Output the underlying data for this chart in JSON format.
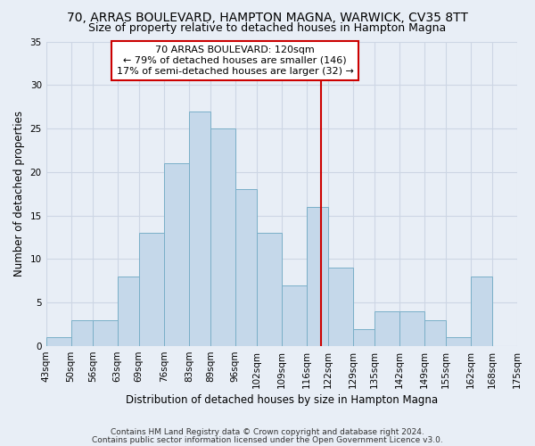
{
  "title": "70, ARRAS BOULEVARD, HAMPTON MAGNA, WARWICK, CV35 8TT",
  "subtitle": "Size of property relative to detached houses in Hampton Magna",
  "xlabel": "Distribution of detached houses by size in Hampton Magna",
  "ylabel": "Number of detached properties",
  "bin_edges": [
    43,
    50,
    56,
    63,
    69,
    76,
    83,
    89,
    96,
    102,
    109,
    116,
    122,
    129,
    135,
    142,
    149,
    155,
    162,
    168,
    175
  ],
  "bar_heights": [
    1,
    3,
    3,
    8,
    13,
    21,
    27,
    25,
    18,
    13,
    7,
    16,
    9,
    2,
    4,
    4,
    3,
    1,
    8,
    0
  ],
  "bar_color": "#c5d8ea",
  "bar_edge_color": "#7aafc8",
  "grid_color": "#cdd6e4",
  "background_color": "#e8eef6",
  "vline_value": 120,
  "vline_color": "#cc0000",
  "annotation_text": "70 ARRAS BOULEVARD: 120sqm\n← 79% of detached houses are smaller (146)\n17% of semi-detached houses are larger (32) →",
  "annotation_box_color": "#ffffff",
  "annotation_box_edge": "#cc0000",
  "footer_line1": "Contains HM Land Registry data © Crown copyright and database right 2024.",
  "footer_line2": "Contains public sector information licensed under the Open Government Licence v3.0.",
  "ylim": [
    0,
    35
  ],
  "yticks": [
    0,
    5,
    10,
    15,
    20,
    25,
    30,
    35
  ],
  "title_fontsize": 10,
  "subtitle_fontsize": 9,
  "axis_label_fontsize": 8.5,
  "tick_fontsize": 7.5,
  "footer_fontsize": 6.5,
  "annot_fontsize": 8
}
